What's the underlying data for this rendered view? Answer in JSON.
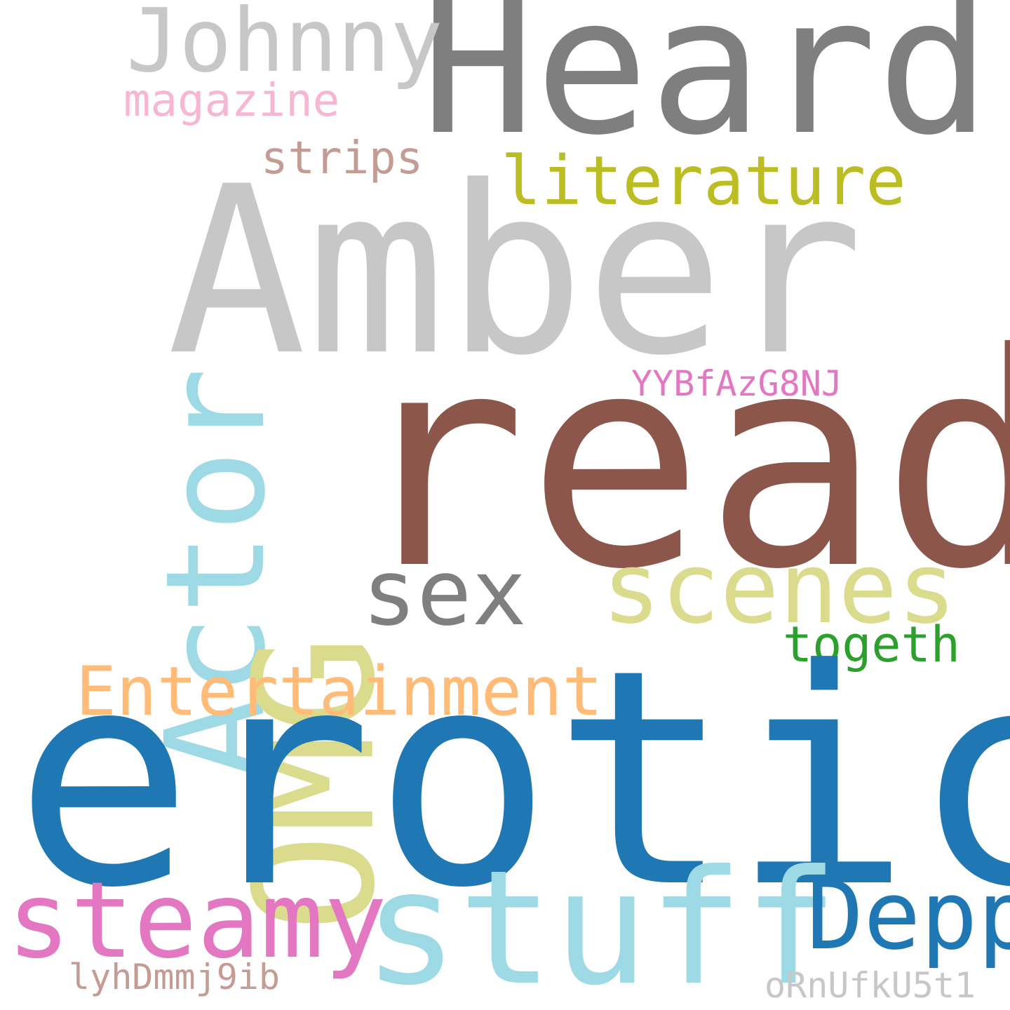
{
  "words": {
    "heard": {
      "text": "Heard",
      "color": "#7f7f7f"
    },
    "johnny": {
      "text": "Johnny",
      "color": "#c7c7c7"
    },
    "magazine": {
      "text": "magazine",
      "color": "#f7b6d2"
    },
    "strips": {
      "text": "strips",
      "color": "#c49c94"
    },
    "literature": {
      "text": "literature",
      "color": "#bcbd22"
    },
    "amber": {
      "text": "Amber",
      "color": "#c7c7c7"
    },
    "actor": {
      "text": "Actor",
      "color": "#9edae5"
    },
    "omg": {
      "text": "OMG",
      "color": "#dbdb8d"
    },
    "yybf": {
      "text": "YYBfAzG8NJ",
      "color": "#e377c2"
    },
    "read": {
      "text": "read",
      "color": "#8c564b"
    },
    "sex": {
      "text": "sex",
      "color": "#7f7f7f"
    },
    "scenes": {
      "text": "scenes",
      "color": "#dbdb8d"
    },
    "togeth": {
      "text": "togeth",
      "color": "#2ca02c"
    },
    "entertainment": {
      "text": "Entertainment",
      "color": "#ffbb78"
    },
    "erotic": {
      "text": "erotic",
      "color": "#1f77b4"
    },
    "steamy": {
      "text": "steamy",
      "color": "#e377c2"
    },
    "stuff": {
      "text": "stuff",
      "color": "#9edae5"
    },
    "depp": {
      "text": "Depp",
      "color": "#1f77b4"
    },
    "lyhd": {
      "text": "lyhDmmj9ib",
      "color": "#c49c94"
    },
    "ornu": {
      "text": "oRnUfkU5t1",
      "color": "#c7c7c7"
    }
  }
}
